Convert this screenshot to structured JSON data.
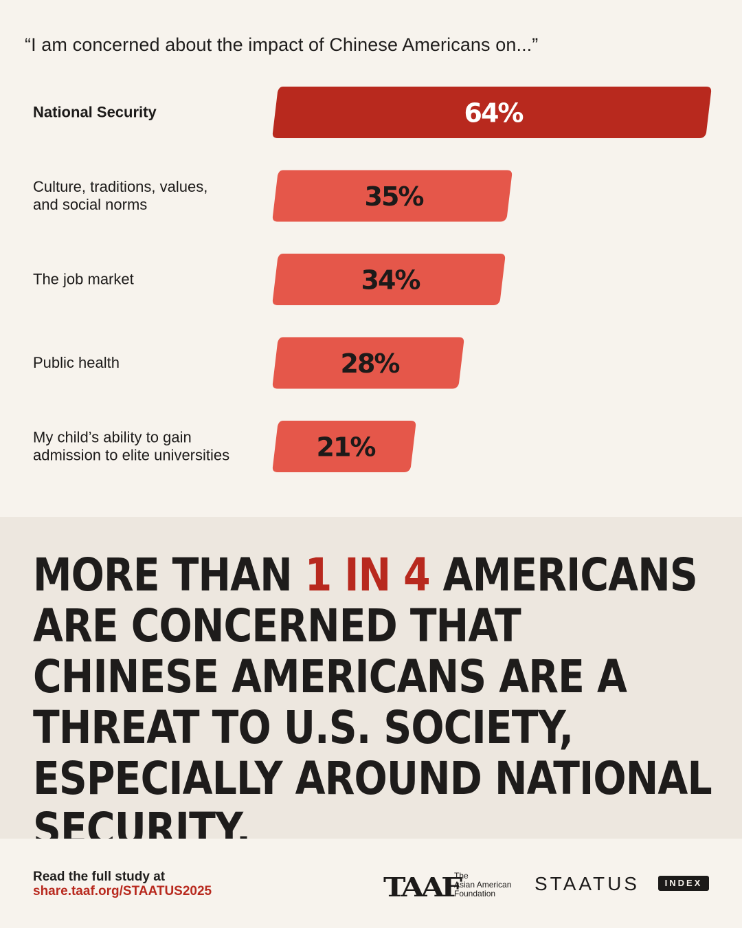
{
  "question": "“I am concerned about the impact of Chinese Americans on...”",
  "chart_data": {
    "type": "bar",
    "orientation": "horizontal",
    "categories": [
      "National Security",
      "Culture, traditions, values,\nand social norms",
      "The job market",
      "Public health",
      "My child’s ability to gain\nadmission to elite universities"
    ],
    "values": [
      64,
      35,
      34,
      28,
      21
    ],
    "value_labels": [
      "64%",
      "35%",
      "34%",
      "28%",
      "21%"
    ],
    "highlight_index": 0,
    "colors": {
      "highlight": "#b8291e",
      "bar": "#e5574a",
      "highlight_label": "#ffffff",
      "bar_label": "#1c1a19"
    },
    "xlim": [
      0,
      64
    ]
  },
  "headline": {
    "pre": "MORE THAN ",
    "accent": "1 IN 4",
    "post": " AMERICANS ARE CONCERNED THAT CHINESE AMERICANS ARE A THREAT TO U.S. SOCIETY, ESPECIALLY AROUND NATIONAL SECURITY."
  },
  "footer": {
    "read_text": "Read the full study at",
    "link": "share.taaf.org/STAATUS2025",
    "taaf_mark": "TAAF",
    "taaf_name_line1": "The",
    "taaf_name_line2": "Asian American",
    "taaf_name_line3": "Foundation",
    "staatus": "STAATUS",
    "index": "INDEX"
  }
}
